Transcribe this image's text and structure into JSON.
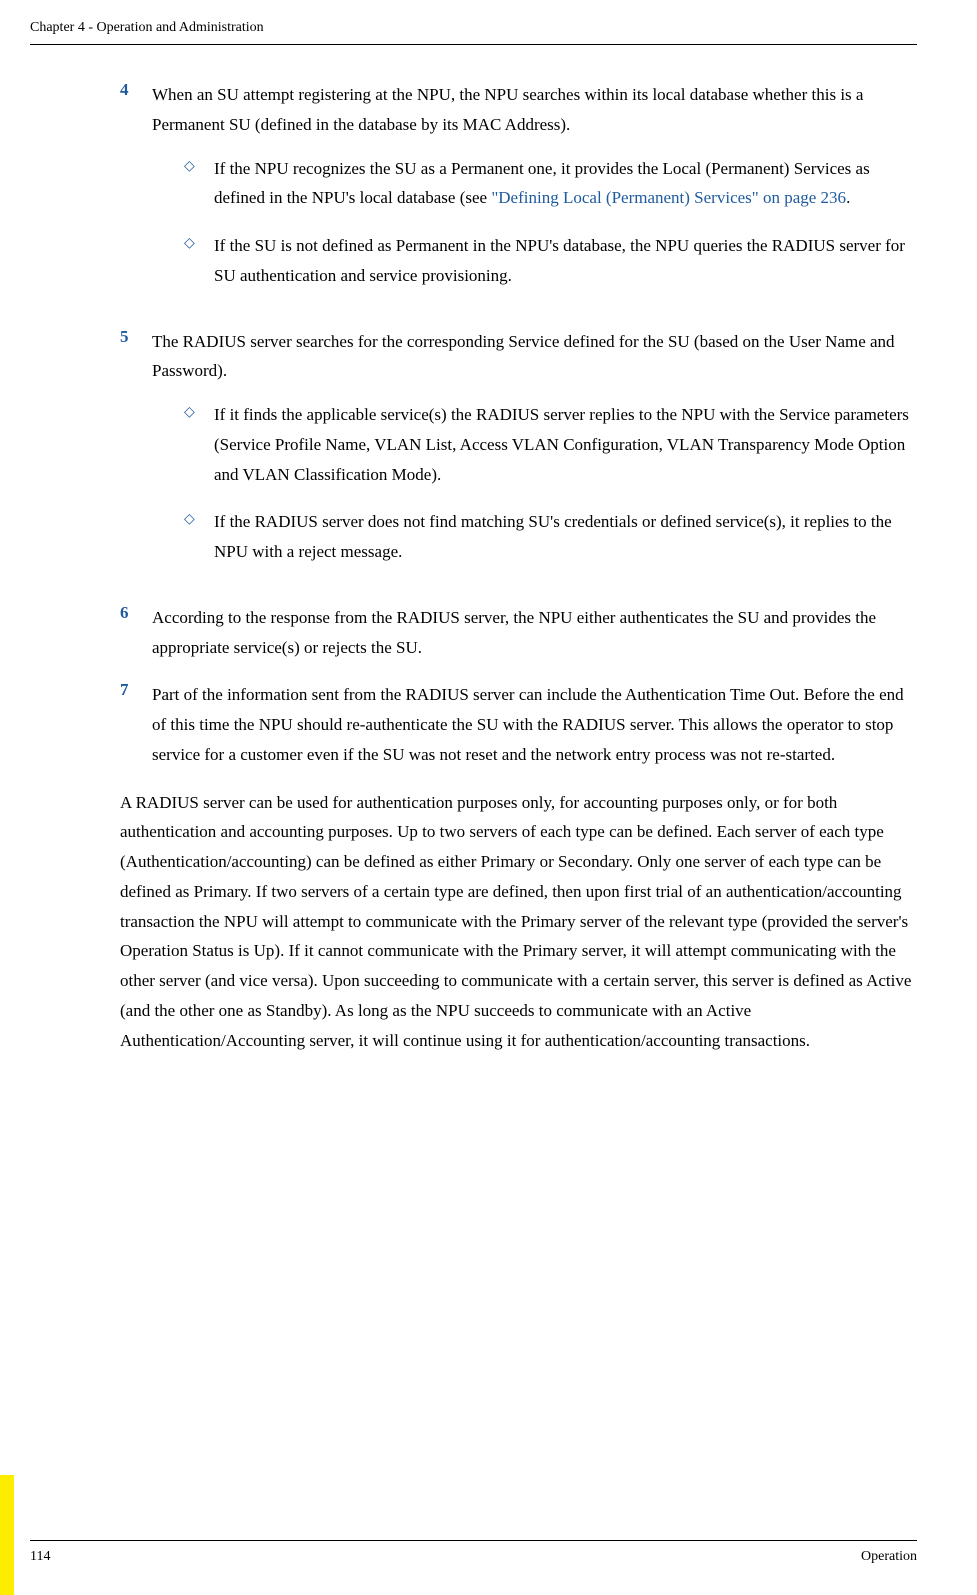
{
  "header": {
    "chapter_title": "Chapter 4 - Operation and Administration"
  },
  "items": {
    "item4": {
      "number": "4",
      "text": "When an SU attempt registering at the NPU, the NPU searches within its local database whether this is a Permanent SU (defined in the database by its MAC Address).",
      "sub1_pre": "If the NPU recognizes the SU as a Permanent one, it provides the Local (Permanent) Services as defined in the NPU's local database (see ",
      "sub1_link": "\"Defining Local (Permanent) Services\" on page 236",
      "sub1_post": ".",
      "sub2": "If the SU is not defined as Permanent in the NPU's database, the NPU queries the RADIUS server for SU authentication and service provisioning."
    },
    "item5": {
      "number": "5",
      "text": "The RADIUS server searches for the corresponding Service defined for the SU (based on the User Name and Password).",
      "sub1": "If it finds the applicable service(s) the RADIUS server replies to the NPU with the Service parameters (Service Profile Name, VLAN List, Access VLAN Configuration, VLAN Transparency Mode Option and VLAN Classification Mode).",
      "sub2": "If the RADIUS server does not find matching SU's credentials or defined service(s), it replies to the NPU with a reject message."
    },
    "item6": {
      "number": "6",
      "text": "According to the response from the RADIUS server, the NPU either authenticates the SU and provides the appropriate service(s) or rejects the SU."
    },
    "item7": {
      "number": "7",
      "text": "Part of the information sent from the RADIUS server can include the Authentication Time Out. Before the end of this time the NPU should re-authenticate the SU with the RADIUS server. This allows the operator to stop service for a customer even if the SU was not reset and the network entry process was not re-started."
    }
  },
  "body_paragraph": "A RADIUS server can be used for authentication purposes only, for accounting purposes only, or for both authentication and accounting purposes. Up to two servers of each type can be defined. Each server of each type (Authentication/accounting) can be defined as either Primary or Secondary. Only one server of each type can be defined as Primary. If two servers of a certain type are defined, then upon first trial of an authentication/accounting transaction the NPU will attempt to communicate with the Primary server of the relevant type (provided the server's Operation Status is Up). If it cannot communicate with the Primary server, it will attempt communicating with the other server (and vice versa). Upon succeeding to communicate with a certain server, this server is defined as Active (and the other one as Standby). As long as the NPU succeeds to communicate with an Active Authentication/Accounting server, it will continue using it for authentication/accounting transactions.",
  "footer": {
    "page_number": "114",
    "section": "Operation"
  },
  "colors": {
    "accent": "#1e5a9e",
    "highlight": "#ffed00"
  }
}
